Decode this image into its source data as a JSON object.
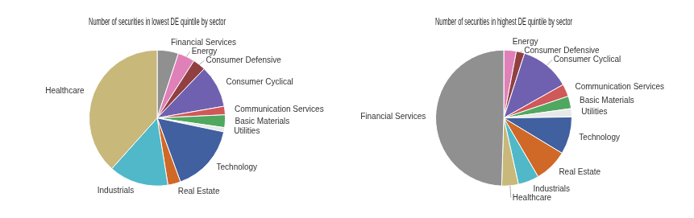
{
  "chart_data": [
    {
      "type": "pie",
      "title": "Number of securities in lowest DE quintile by sector",
      "categories": [
        "Financial Services",
        "Energy",
        "Consumer Defensive",
        "Consumer Cyclical",
        "Communication Services",
        "Basic Materials",
        "Utilities",
        "Technology",
        "Real Estate",
        "Industrials",
        "Healthcare"
      ],
      "values": [
        5,
        4,
        3,
        10,
        2,
        3,
        1,
        16,
        3,
        14,
        38
      ],
      "colors": [
        "#909090",
        "#e080b8",
        "#904040",
        "#7060b0",
        "#d05858",
        "#50a860",
        "#e8e8e8",
        "#4060a0",
        "#d06828",
        "#50b8c8",
        "#c8b87a"
      ]
    },
    {
      "type": "pie",
      "title": "Number of securities in highest DE quintile by sector",
      "categories": [
        "Energy",
        "Consumer Defensive",
        "Consumer Cyclical",
        "Communication Services",
        "Basic Materials",
        "Utilities",
        "Technology",
        "Real Estate",
        "Industrials",
        "Healthcare",
        "Financial Services"
      ],
      "values": [
        3,
        2,
        12,
        3,
        3,
        2,
        9,
        8,
        5,
        4,
        50
      ],
      "colors": [
        "#e080b8",
        "#904040",
        "#7060b0",
        "#d05858",
        "#50a860",
        "#e8e8e8",
        "#4060a0",
        "#d06828",
        "#50b8c8",
        "#c8b87a",
        "#909090"
      ]
    }
  ]
}
